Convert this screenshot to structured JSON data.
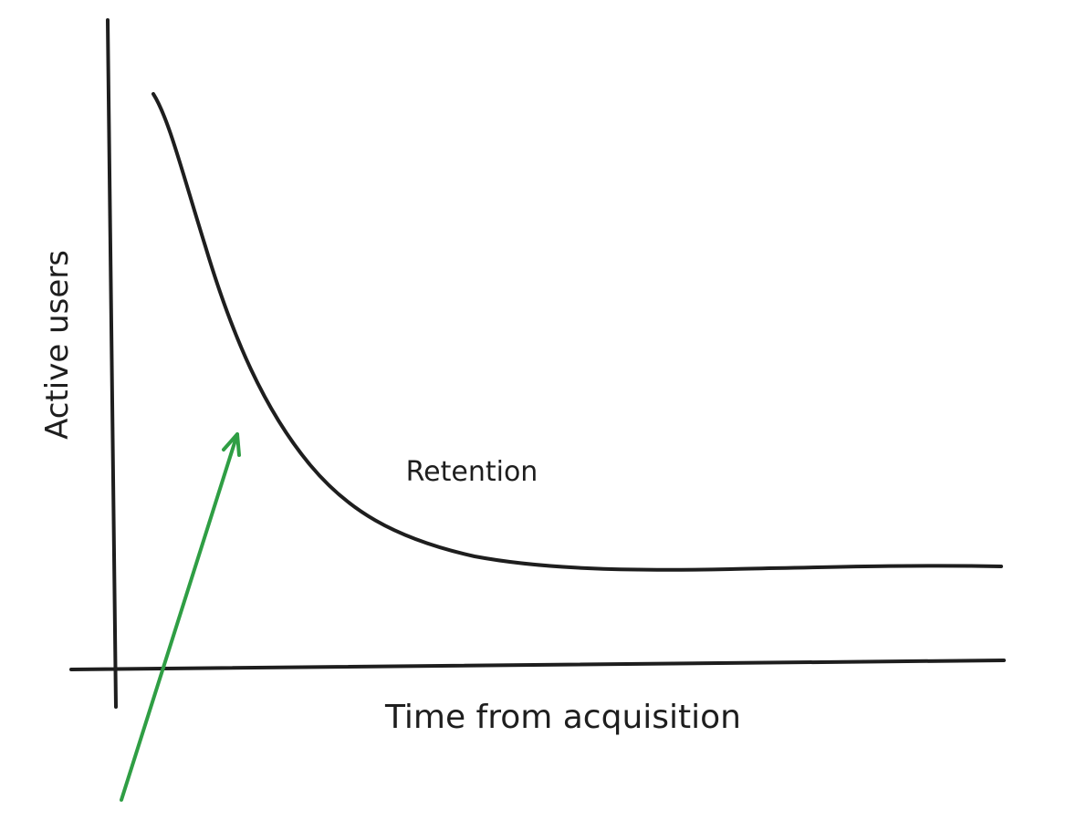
{
  "axis_labels": {
    "y": "Active users",
    "x": "Time from acquisition"
  },
  "curve_label": "Retention"
}
